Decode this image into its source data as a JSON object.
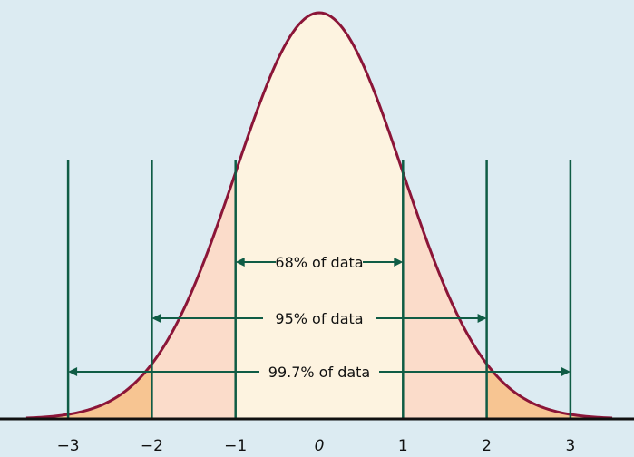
{
  "chart_data": {
    "type": "area",
    "distribution": "standard normal",
    "x_range": [
      -3.5,
      3.5
    ],
    "y_range": [
      0,
      0.4
    ],
    "x_ticks": [
      -3,
      -2,
      -1,
      0,
      1,
      2,
      3
    ],
    "x_tick_labels": [
      "−3",
      "−2",
      "−1",
      "0",
      "1",
      "2",
      "3"
    ],
    "reference_lines_at": [
      -3,
      -2,
      -1,
      1,
      2,
      3
    ],
    "intervals": [
      {
        "from": -1,
        "to": 1,
        "label": "68% of data"
      },
      {
        "from": -2,
        "to": 2,
        "label": "95% of data"
      },
      {
        "from": -3,
        "to": 3,
        "label": "99.7% of data"
      }
    ],
    "colors": {
      "background": "#dcebf2",
      "curve": "#8b1538",
      "band_1sd": "#fdf3e0",
      "band_2sd": "#fbdcca",
      "band_3sd": "#f7c592",
      "lines": "#0f5c45",
      "axis": "#111111"
    }
  }
}
